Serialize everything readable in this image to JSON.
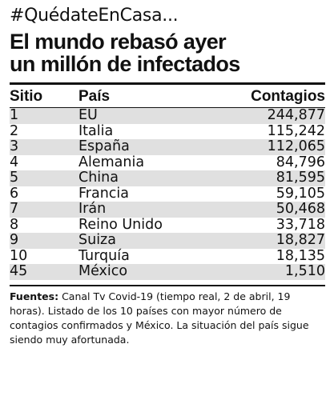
{
  "header": {
    "kicker": "#QuédateEnCasa...",
    "headline_line1": "El mundo rebasó ayer",
    "headline_line2": "un millón de infectados"
  },
  "chart_data": {
    "type": "table",
    "title": "El mundo rebasó ayer un millón de infectados",
    "columns": [
      "Sitio",
      "País",
      "Contagios"
    ],
    "rows": [
      {
        "rank": "1",
        "country": "EU",
        "cases": "244,877"
      },
      {
        "rank": "2",
        "country": "Italia",
        "cases": "115,242"
      },
      {
        "rank": "3",
        "country": "España",
        "cases": "112,065"
      },
      {
        "rank": "4",
        "country": "Alemania",
        "cases": "84,796"
      },
      {
        "rank": "5",
        "country": "China",
        "cases": "81,595"
      },
      {
        "rank": "6",
        "country": "Francia",
        "cases": "59,105"
      },
      {
        "rank": "7",
        "country": "Irán",
        "cases": "50,468"
      },
      {
        "rank": "8",
        "country": "Reino Unido",
        "cases": "33,718"
      },
      {
        "rank": "9",
        "country": "Suiza",
        "cases": "18,827"
      },
      {
        "rank": "10",
        "country": "Turquía",
        "cases": "18,135"
      },
      {
        "rank": "45",
        "country": "México",
        "cases": "1,510"
      }
    ]
  },
  "footer": {
    "label": "Fuentes:",
    "text": " Canal Tv Covid-19 (tiempo real, 2 de abril, 19 horas). Listado de los 10 países con mayor número de contagios confirmados y México. La situación del país sigue siendo muy afortunada."
  },
  "colors": {
    "stripe": "#e0e0e0",
    "text": "#111111"
  }
}
